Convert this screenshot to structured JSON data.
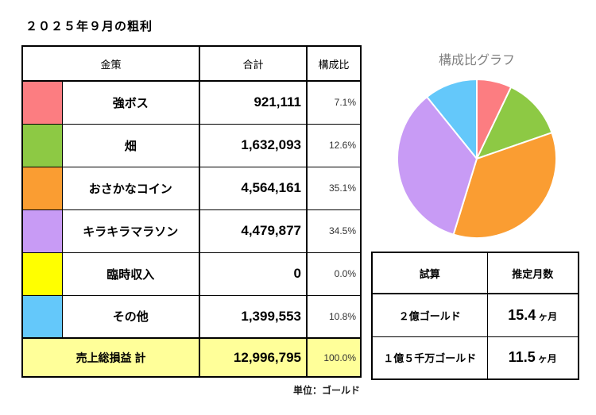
{
  "page": {
    "title": "２０２５年９月の粗利",
    "unit_note": "単位：ゴールド"
  },
  "main_table": {
    "headers": {
      "category": "金策",
      "total": "合計",
      "ratio": "構成比"
    },
    "rows": [
      {
        "label": "強ボス",
        "total": "921,111",
        "ratio": "7.1%",
        "color": "#FC7D81"
      },
      {
        "label": "畑",
        "total": "1,632,093",
        "ratio": "12.6%",
        "color": "#8DC944"
      },
      {
        "label": "おさかなコイン",
        "total": "4,564,161",
        "ratio": "35.1%",
        "color": "#FA9D32"
      },
      {
        "label": "キラキラマラソン",
        "total": "4,479,877",
        "ratio": "34.5%",
        "color": "#C89BF5"
      },
      {
        "label": "臨時収入",
        "total": "0",
        "ratio": "0.0%",
        "color": "#FFFF00"
      },
      {
        "label": "その他",
        "total": "1,399,553",
        "ratio": "10.8%",
        "color": "#64C8FA"
      }
    ],
    "total_row": {
      "label": "売上総損益 計",
      "total": "12,996,795",
      "ratio": "100.0%",
      "bg": "#FFFF99"
    }
  },
  "chart_data": {
    "type": "pie",
    "title": "構成比グラフ",
    "title_color": "#808080",
    "labels": [
      "強ボス",
      "畑",
      "おさかなコイン",
      "キラキラマラソン",
      "臨時収入",
      "その他"
    ],
    "values": [
      921111,
      1632093,
      4564161,
      4479877,
      0,
      1399553
    ],
    "percentages": [
      7.1,
      12.6,
      35.1,
      34.5,
      0.0,
      10.8
    ],
    "colors": [
      "#FC7D81",
      "#8DC944",
      "#FA9D32",
      "#C89BF5",
      "#FFFF00",
      "#64C8FA"
    ],
    "start_angle_deg": -90,
    "direction": "clockwise",
    "slice_border_color": "#FFFFFF",
    "legend": "none"
  },
  "estimate_table": {
    "headers": {
      "scenario": "試算",
      "months": "推定月数"
    },
    "header_bg": "#CCFF99",
    "rows": [
      {
        "scenario": "２億ゴールド",
        "months_value": "15.4",
        "months_unit": "ヶ月"
      },
      {
        "scenario": "１億５千万ゴールド",
        "months_value": "11.5",
        "months_unit": "ヶ月"
      }
    ]
  }
}
